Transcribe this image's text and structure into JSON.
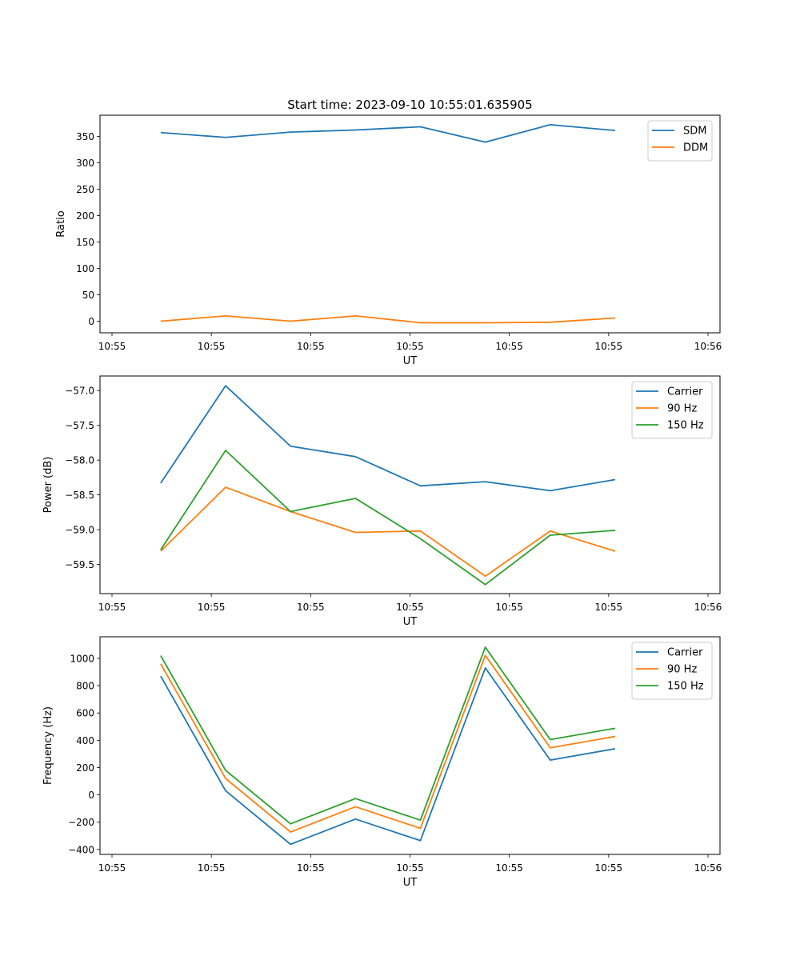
{
  "figure_title": "Start time: 2023-09-10 10:55:01.635905",
  "colors": {
    "blue": "#1f77b4",
    "orange": "#ff7f0e",
    "green": "#2ca02c"
  },
  "chart_data": [
    {
      "type": "line",
      "title": "Start time: 2023-09-10 10:55:01.635905",
      "xlabel": "UT",
      "ylabel": "Ratio",
      "legend_position": "top-right",
      "x_index_range": [
        -0.75,
        8.43
      ],
      "x_ticks": [
        -0.75,
        0.78,
        2.31,
        3.84,
        5.37,
        6.9,
        8.43
      ],
      "x_tick_labels": [
        "10:55",
        "10:55",
        "10:55",
        "10:55",
        "10:55",
        "10:55",
        "10:56"
      ],
      "ylim": [
        -22,
        390
      ],
      "y_ticks": [
        0,
        50,
        100,
        150,
        200,
        250,
        300,
        350
      ],
      "y_tick_labels": [
        "0",
        "50",
        "100",
        "150",
        "200",
        "250",
        "300",
        "350"
      ],
      "x": [
        0,
        1,
        2,
        3,
        4,
        5,
        6,
        7
      ],
      "series": [
        {
          "name": "SDM",
          "color": "#1f77b4",
          "values": [
            357,
            348,
            358,
            362,
            368,
            339,
            372,
            361
          ]
        },
        {
          "name": "DDM",
          "color": "#ff7f0e",
          "values": [
            0,
            10,
            0,
            10,
            -3,
            -3,
            -2,
            6
          ]
        }
      ]
    },
    {
      "type": "line",
      "title": "",
      "xlabel": "UT",
      "ylabel": "Power (dB)",
      "legend_position": "top-right",
      "x_index_range": [
        -0.75,
        8.43
      ],
      "x_ticks": [
        -0.75,
        0.78,
        2.31,
        3.84,
        5.37,
        6.9,
        8.43
      ],
      "x_tick_labels": [
        "10:55",
        "10:55",
        "10:55",
        "10:55",
        "10:55",
        "10:55",
        "10:56"
      ],
      "ylim": [
        -59.92,
        -56.79
      ],
      "y_ticks": [
        -59.5,
        -59.0,
        -58.5,
        -58.0,
        -57.5,
        -57.0
      ],
      "y_tick_labels": [
        "−59.5",
        "−59.0",
        "−58.5",
        "−58.0",
        "−57.5",
        "−57.0"
      ],
      "x": [
        0,
        1,
        2,
        3,
        4,
        5,
        6,
        7
      ],
      "series": [
        {
          "name": "Carrier",
          "color": "#1f77b4",
          "values": [
            -58.33,
            -56.93,
            -57.8,
            -57.95,
            -58.37,
            -58.31,
            -58.44,
            -58.28
          ]
        },
        {
          "name": "90 Hz",
          "color": "#ff7f0e",
          "values": [
            -59.31,
            -58.39,
            -58.74,
            -59.04,
            -59.02,
            -59.67,
            -59.02,
            -59.31
          ]
        },
        {
          "name": "150 Hz",
          "color": "#2ca02c",
          "values": [
            -59.29,
            -57.86,
            -58.74,
            -58.55,
            -59.13,
            -59.79,
            -59.08,
            -59.01
          ]
        }
      ]
    },
    {
      "type": "line",
      "title": "",
      "xlabel": "UT",
      "ylabel": "Frequency (Hz)",
      "legend_position": "top-right",
      "x_index_range": [
        -0.75,
        8.43
      ],
      "x_ticks": [
        -0.75,
        0.78,
        2.31,
        3.84,
        5.37,
        6.9,
        8.43
      ],
      "x_tick_labels": [
        "10:55",
        "10:55",
        "10:55",
        "10:55",
        "10:55",
        "10:55",
        "10:56"
      ],
      "ylim": [
        -436,
        1158
      ],
      "y_ticks": [
        -400,
        -200,
        0,
        200,
        400,
        600,
        800,
        1000
      ],
      "y_tick_labels": [
        "−400",
        "−200",
        "0",
        "200",
        "400",
        "600",
        "800",
        "1000"
      ],
      "x": [
        0,
        1,
        2,
        3,
        4,
        5,
        6,
        7
      ],
      "series": [
        {
          "name": "Carrier",
          "color": "#1f77b4",
          "values": [
            870,
            30,
            -362,
            -177,
            -335,
            930,
            255,
            338
          ]
        },
        {
          "name": "90 Hz",
          "color": "#ff7f0e",
          "values": [
            960,
            120,
            -272,
            -87,
            -245,
            1022,
            345,
            428
          ]
        },
        {
          "name": "150 Hz",
          "color": "#2ca02c",
          "values": [
            1020,
            180,
            -212,
            -27,
            -185,
            1082,
            405,
            488
          ]
        }
      ]
    }
  ]
}
